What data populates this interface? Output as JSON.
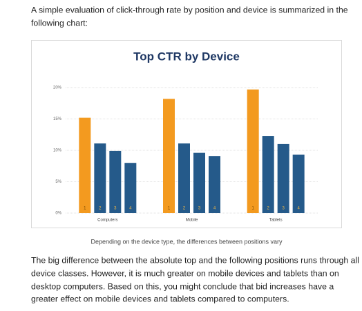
{
  "intro": [
    "A simple evaluation of click-through rate by position and device is summarized in the",
    "following chart:"
  ],
  "chart_data": {
    "type": "bar",
    "title": "Top CTR by Device",
    "categories": [
      "Computers",
      "Mobile",
      "Tablets"
    ],
    "series": [
      {
        "name": "1",
        "color": "#f39a1f",
        "values": [
          15.2,
          18.2,
          19.7
        ]
      },
      {
        "name": "2",
        "color": "#255a8a",
        "values": [
          11.1,
          11.1,
          12.3
        ]
      },
      {
        "name": "3",
        "color": "#255a8a",
        "values": [
          9.9,
          9.6,
          11.0
        ]
      },
      {
        "name": "4",
        "color": "#255a8a",
        "values": [
          8.0,
          9.1,
          9.3
        ]
      }
    ],
    "ylim": [
      0,
      20
    ],
    "yticks": [
      {
        "value": 0,
        "label": "0%"
      },
      {
        "value": 5,
        "label": "5%"
      },
      {
        "value": 10,
        "label": "10%"
      },
      {
        "value": 15,
        "label": "15%"
      },
      {
        "value": 20,
        "label": "20%"
      }
    ],
    "grid": true
  },
  "caption": "Depending on the device type, the differences between positions vary",
  "body": [
    "The big difference between the absolute top and the following positions runs through all",
    "device classes. However, it is much greater on mobile devices and tablets than on",
    "desktop computers. Based on this, you might conclude that bid increases have a",
    "greater effect on mobile devices and tablets compared to computers."
  ]
}
